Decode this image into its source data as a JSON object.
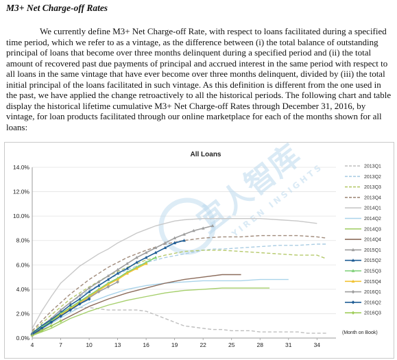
{
  "document": {
    "heading": "M3+ Net Charge-off Rates",
    "paragraph": "We currently define M3+ Net Charge-off Rate, with respect to loans facilitated during a specified time period, which we refer to as a vintage, as the difference between (i) the total balance of outstanding principal of loans that become over three months delinquent during a specified period and (ii) the total amount of recovered past due payments of principal and accrued interest in the same period with respect to all loans in the same vintage that have ever become over three months delinquent, divided by (iii) the total initial principal of the loans facilitated in such vintage. As this definition is different from the one used in the past, we have applied the change retroactively to all the historical periods. The following chart and table display the historical lifetime cumulative M3+ Net Charge-off Rates through December 31, 2016, by vintage, for loan products facilitated through our online marketplace for each of the months shown for all loans:"
  },
  "watermark": {
    "logo_text": "宜人智库",
    "sub_text": "YIREN INSIGHTS"
  },
  "chart_data": {
    "type": "line",
    "title": "All Loans",
    "xlabel": "(Month on Book)",
    "ylabel": "",
    "xlim": [
      4,
      36
    ],
    "ylim": [
      0,
      14
    ],
    "x_ticks": [
      4,
      7,
      10,
      13,
      16,
      19,
      22,
      25,
      28,
      31,
      34
    ],
    "y_ticks": [
      "0.0%",
      "2.0%",
      "4.0%",
      "6.0%",
      "8.0%",
      "10.0%",
      "12.0%",
      "14.0%"
    ],
    "grid": true,
    "legend_position": "right",
    "series": [
      {
        "name": "2013Q1",
        "color": "#bdbdbd",
        "dash": "5,3",
        "marker": "none",
        "x": [
          4,
          5,
          6,
          7,
          8,
          9,
          10,
          11,
          12,
          13,
          14,
          15,
          16,
          17,
          18,
          19,
          20,
          21,
          22,
          23,
          24,
          25,
          26,
          27,
          28,
          29,
          30,
          31,
          32,
          33,
          34,
          35
        ],
        "y": [
          0.3,
          0.9,
          1.5,
          2.0,
          2.3,
          2.5,
          2.5,
          2.4,
          2.3,
          2.3,
          2.3,
          2.3,
          2.2,
          1.9,
          1.6,
          1.3,
          1.0,
          0.9,
          0.8,
          0.7,
          0.7,
          0.6,
          0.6,
          0.6,
          0.5,
          0.5,
          0.5,
          0.5,
          0.5,
          0.4,
          0.4,
          0.4
        ]
      },
      {
        "name": "2013Q2",
        "color": "#a9cce3",
        "dash": "5,3",
        "marker": "none",
        "x": [
          4,
          6,
          8,
          10,
          12,
          14,
          16,
          18,
          20,
          22,
          23,
          24,
          26,
          28,
          30,
          32,
          34,
          35
        ],
        "y": [
          0.4,
          1.6,
          2.9,
          3.9,
          4.8,
          5.6,
          6.2,
          6.6,
          6.9,
          7.2,
          7.3,
          7.3,
          7.4,
          7.5,
          7.6,
          7.6,
          7.7,
          7.7
        ]
      },
      {
        "name": "2013Q3",
        "color": "#b5c96b",
        "dash": "5,3",
        "marker": "none",
        "x": [
          4,
          6,
          8,
          10,
          12,
          14,
          16,
          18,
          20,
          22,
          24,
          26,
          28,
          30,
          32,
          34,
          35
        ],
        "y": [
          0.5,
          1.9,
          3.2,
          4.2,
          5.1,
          5.8,
          6.4,
          6.8,
          7.1,
          7.2,
          7.2,
          7.1,
          7.0,
          6.9,
          6.8,
          6.8,
          6.5
        ]
      },
      {
        "name": "2013Q4",
        "color": "#a08a7a",
        "dash": "5,3",
        "marker": "none",
        "x": [
          4,
          6,
          8,
          10,
          12,
          14,
          16,
          18,
          20,
          22,
          24,
          26,
          28,
          30,
          32,
          34,
          35
        ],
        "y": [
          0.6,
          2.2,
          3.6,
          4.8,
          5.8,
          6.6,
          7.2,
          7.7,
          8.0,
          8.2,
          8.3,
          8.3,
          8.4,
          8.4,
          8.4,
          8.3,
          8.2
        ]
      },
      {
        "name": "2014Q1",
        "color": "#c8c8c8",
        "dash": "",
        "marker": "none",
        "x": [
          4,
          5,
          6,
          7,
          8,
          9,
          10,
          11,
          12,
          13,
          14,
          15,
          16,
          17,
          18,
          19,
          20,
          22,
          24,
          26,
          28,
          30,
          32,
          34
        ],
        "y": [
          0.8,
          2.2,
          3.4,
          4.5,
          5.2,
          5.9,
          6.4,
          6.9,
          7.3,
          7.8,
          8.2,
          8.6,
          8.9,
          9.2,
          9.4,
          9.6,
          9.7,
          9.8,
          9.8,
          9.8,
          9.8,
          9.7,
          9.6,
          9.4
        ]
      },
      {
        "name": "2014Q2",
        "color": "#a9d3ea",
        "dash": "",
        "marker": "none",
        "x": [
          4,
          6,
          8,
          10,
          12,
          14,
          16,
          18,
          20,
          22,
          24,
          26,
          28,
          30,
          31
        ],
        "y": [
          0.3,
          1.2,
          2.1,
          2.9,
          3.5,
          4.0,
          4.3,
          4.5,
          4.6,
          4.7,
          4.7,
          4.7,
          4.8,
          4.8,
          4.8
        ]
      },
      {
        "name": "2014Q3",
        "color": "#a5cf6b",
        "dash": "",
        "marker": "none",
        "x": [
          4,
          6,
          8,
          10,
          12,
          14,
          16,
          18,
          20,
          22,
          24,
          26,
          28,
          29
        ],
        "y": [
          0.2,
          0.8,
          1.6,
          2.2,
          2.7,
          3.1,
          3.4,
          3.7,
          3.9,
          4.0,
          4.1,
          4.1,
          4.1,
          4.1
        ]
      },
      {
        "name": "2014Q4",
        "color": "#8b6b5a",
        "dash": "",
        "marker": "none",
        "x": [
          4,
          6,
          8,
          10,
          12,
          14,
          16,
          18,
          20,
          22,
          24,
          26
        ],
        "y": [
          0.3,
          1.0,
          1.8,
          2.6,
          3.2,
          3.7,
          4.1,
          4.5,
          4.8,
          5.0,
          5.2,
          5.2
        ]
      },
      {
        "name": "2015Q1",
        "color": "#9e9e9e",
        "dash": "",
        "marker": "triangle",
        "x": [
          4,
          5,
          6,
          7,
          8,
          9,
          10,
          11,
          12,
          13,
          14,
          15,
          16,
          17,
          18,
          19,
          20,
          21,
          22,
          23
        ],
        "y": [
          0.4,
          1.0,
          1.6,
          2.3,
          2.9,
          3.5,
          4.1,
          4.6,
          5.1,
          5.6,
          6.1,
          6.6,
          7.0,
          7.4,
          7.8,
          8.2,
          8.5,
          8.8,
          9.0,
          9.2
        ]
      },
      {
        "name": "2015Q2",
        "color": "#1f5d95",
        "dash": "",
        "marker": "triangle",
        "x": [
          4,
          5,
          6,
          7,
          8,
          9,
          10,
          11,
          12,
          13,
          14,
          15,
          16,
          17,
          18,
          19,
          20
        ],
        "y": [
          0.4,
          1.0,
          1.5,
          2.1,
          2.7,
          3.2,
          3.8,
          4.3,
          4.8,
          5.3,
          5.7,
          6.2,
          6.6,
          7.0,
          7.4,
          7.8,
          8.0
        ]
      },
      {
        "name": "2015Q3",
        "color": "#7ccf75",
        "dash": "",
        "marker": "triangle",
        "x": [
          4,
          5,
          6,
          7,
          8,
          9,
          10,
          11,
          12,
          13,
          14,
          15,
          16,
          17
        ],
        "y": [
          0.3,
          0.9,
          1.4,
          2.0,
          2.5,
          3.0,
          3.5,
          4.0,
          4.5,
          4.9,
          5.4,
          5.8,
          6.2,
          6.6
        ]
      },
      {
        "name": "2015Q4",
        "color": "#f1c232",
        "dash": "",
        "marker": "triangle",
        "x": [
          4,
          5,
          6,
          7,
          8,
          9,
          10,
          11,
          12,
          13,
          14,
          15,
          16
        ],
        "y": [
          0.3,
          0.8,
          1.3,
          1.9,
          2.4,
          2.9,
          3.4,
          3.9,
          4.4,
          4.8,
          5.3,
          5.7,
          6.1
        ]
      },
      {
        "name": "2016Q1",
        "color": "#9e9e9e",
        "dash": "",
        "marker": "diamond",
        "x": [
          4,
          5,
          6,
          7,
          8,
          9,
          10,
          11,
          12,
          13
        ],
        "y": [
          0.3,
          0.8,
          1.3,
          1.8,
          2.3,
          2.8,
          3.3,
          3.8,
          4.2,
          4.6
        ]
      },
      {
        "name": "2016Q2",
        "color": "#1f5d95",
        "dash": "",
        "marker": "diamond",
        "x": [
          4,
          5,
          6,
          7,
          8,
          9,
          10
        ],
        "y": [
          0.3,
          0.8,
          1.3,
          1.8,
          2.3,
          2.8,
          3.2
        ]
      },
      {
        "name": "2016Q3",
        "color": "#9fcd5a",
        "dash": "",
        "marker": "diamond",
        "x": [
          4,
          5,
          6,
          7
        ],
        "y": [
          0.2,
          0.6,
          1.0,
          1.4
        ]
      }
    ]
  }
}
